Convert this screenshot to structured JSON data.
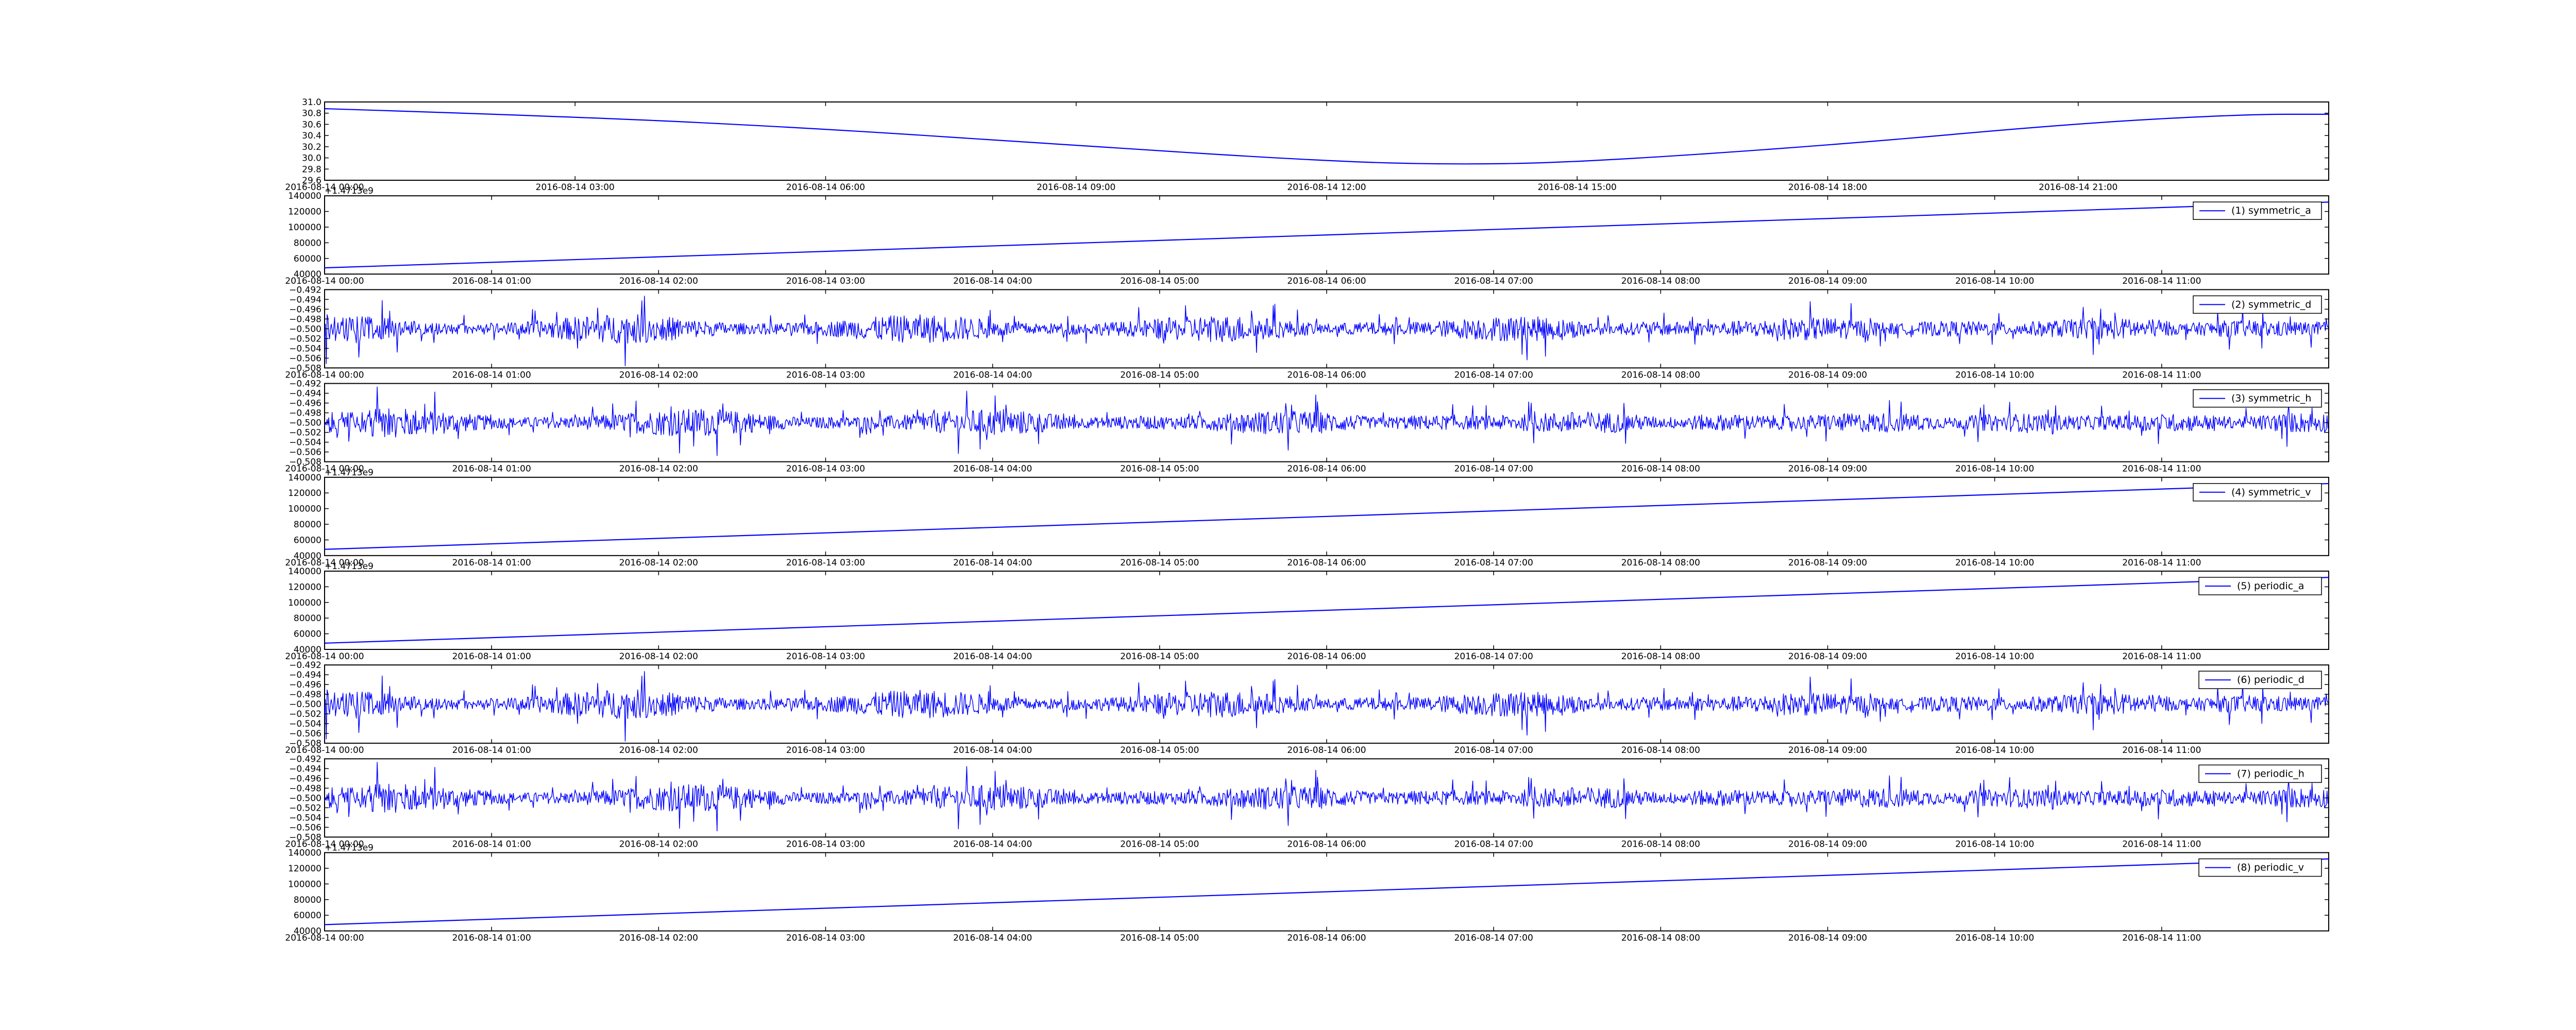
{
  "colors": {
    "series": "#0000ff",
    "frame": "#000000",
    "background": "#ffffff"
  },
  "chart_data": [
    {
      "type": "line",
      "title": "",
      "xlabel": "",
      "ylabel": "",
      "grid": false,
      "x_range": [
        "2016-08-14 00:00",
        "2016-08-15 00:00"
      ],
      "x_ticks": [
        "2016-08-14 00:00",
        "2016-08-14 03:00",
        "2016-08-14 06:00",
        "2016-08-14 09:00",
        "2016-08-14 12:00",
        "2016-08-14 15:00",
        "2016-08-14 18:00",
        "2016-08-14 21:00"
      ],
      "ylim": [
        29.6,
        31.0
      ],
      "y_ticks": [
        "29.6",
        "29.8",
        "30.0",
        "30.2",
        "30.4",
        "30.6",
        "30.8",
        "31.0"
      ],
      "offset_text": "",
      "legend": "",
      "legend_placement": "none",
      "series": [
        {
          "shape": "sine",
          "x": [
            "2016-08-14 00:00",
            "2016-08-14 03:00",
            "2016-08-14 06:00",
            "2016-08-14 09:00",
            "2016-08-14 12:00",
            "2016-08-14 13:30",
            "2016-08-14 15:00",
            "2016-08-14 18:00",
            "2016-08-14 21:00",
            "2016-08-14 23:00",
            "2016-08-15 00:00"
          ],
          "y": [
            30.88,
            30.74,
            30.52,
            30.22,
            29.94,
            29.88,
            29.92,
            30.22,
            30.62,
            30.78,
            30.78
          ]
        }
      ]
    },
    {
      "type": "line",
      "title": "",
      "xlabel": "",
      "ylabel": "",
      "grid": false,
      "x_range": [
        "2016-08-14 00:00",
        "2016-08-14 12:00"
      ],
      "x_ticks": [
        "2016-08-14 00:00",
        "2016-08-14 01:00",
        "2016-08-14 02:00",
        "2016-08-14 03:00",
        "2016-08-14 04:00",
        "2016-08-14 05:00",
        "2016-08-14 06:00",
        "2016-08-14 07:00",
        "2016-08-14 08:00",
        "2016-08-14 09:00",
        "2016-08-14 10:00",
        "2016-08-14 11:00"
      ],
      "ylim": [
        40000,
        140000
      ],
      "y_ticks": [
        "40000",
        "60000",
        "80000",
        "100000",
        "120000",
        "140000"
      ],
      "offset_text": "+1.4713e9",
      "legend": "(1) symmetric_a",
      "legend_placement": "upper right",
      "series": [
        {
          "shape": "linear",
          "start": 48000,
          "end": 132000
        }
      ]
    },
    {
      "type": "line",
      "title": "",
      "xlabel": "",
      "ylabel": "",
      "grid": false,
      "x_range": [
        "2016-08-14 00:00",
        "2016-08-14 12:00"
      ],
      "x_ticks": [
        "2016-08-14 00:00",
        "2016-08-14 01:00",
        "2016-08-14 02:00",
        "2016-08-14 03:00",
        "2016-08-14 04:00",
        "2016-08-14 05:00",
        "2016-08-14 06:00",
        "2016-08-14 07:00",
        "2016-08-14 08:00",
        "2016-08-14 09:00",
        "2016-08-14 10:00",
        "2016-08-14 11:00"
      ],
      "ylim": [
        -0.508,
        -0.492
      ],
      "y_ticks": [
        "−0.508",
        "−0.506",
        "−0.504",
        "−0.502",
        "−0.500",
        "−0.498",
        "−0.496",
        "−0.494",
        "−0.492"
      ],
      "offset_text": "",
      "legend": "(2) symmetric_d",
      "legend_placement": "upper right",
      "series": [
        {
          "shape": "noise",
          "center": -0.5,
          "spread": 0.0055,
          "seed": 11
        }
      ]
    },
    {
      "type": "line",
      "title": "",
      "xlabel": "",
      "ylabel": "",
      "grid": false,
      "x_range": [
        "2016-08-14 00:00",
        "2016-08-14 12:00"
      ],
      "x_ticks": [
        "2016-08-14 00:00",
        "2016-08-14 01:00",
        "2016-08-14 02:00",
        "2016-08-14 03:00",
        "2016-08-14 04:00",
        "2016-08-14 05:00",
        "2016-08-14 06:00",
        "2016-08-14 07:00",
        "2016-08-14 08:00",
        "2016-08-14 09:00",
        "2016-08-14 10:00",
        "2016-08-14 11:00"
      ],
      "ylim": [
        -0.508,
        -0.492
      ],
      "y_ticks": [
        "−0.508",
        "−0.506",
        "−0.504",
        "−0.502",
        "−0.500",
        "−0.498",
        "−0.496",
        "−0.494",
        "−0.492"
      ],
      "offset_text": "",
      "legend": "(3) symmetric_h",
      "legend_placement": "upper right",
      "series": [
        {
          "shape": "noise",
          "center": -0.5,
          "spread": 0.0055,
          "seed": 23
        }
      ]
    },
    {
      "type": "line",
      "title": "",
      "xlabel": "",
      "ylabel": "",
      "grid": false,
      "x_range": [
        "2016-08-14 00:00",
        "2016-08-14 12:00"
      ],
      "x_ticks": [
        "2016-08-14 00:00",
        "2016-08-14 01:00",
        "2016-08-14 02:00",
        "2016-08-14 03:00",
        "2016-08-14 04:00",
        "2016-08-14 05:00",
        "2016-08-14 06:00",
        "2016-08-14 07:00",
        "2016-08-14 08:00",
        "2016-08-14 09:00",
        "2016-08-14 10:00",
        "2016-08-14 11:00"
      ],
      "ylim": [
        40000,
        140000
      ],
      "y_ticks": [
        "40000",
        "60000",
        "80000",
        "100000",
        "120000",
        "140000"
      ],
      "offset_text": "+1.4713e9",
      "legend": "(4) symmetric_v",
      "legend_placement": "upper right",
      "series": [
        {
          "shape": "linear",
          "start": 48000,
          "end": 132000
        }
      ]
    },
    {
      "type": "line",
      "title": "",
      "xlabel": "",
      "ylabel": "",
      "grid": false,
      "x_range": [
        "2016-08-14 00:00",
        "2016-08-14 12:00"
      ],
      "x_ticks": [
        "2016-08-14 00:00",
        "2016-08-14 01:00",
        "2016-08-14 02:00",
        "2016-08-14 03:00",
        "2016-08-14 04:00",
        "2016-08-14 05:00",
        "2016-08-14 06:00",
        "2016-08-14 07:00",
        "2016-08-14 08:00",
        "2016-08-14 09:00",
        "2016-08-14 10:00",
        "2016-08-14 11:00"
      ],
      "ylim": [
        40000,
        140000
      ],
      "y_ticks": [
        "40000",
        "60000",
        "80000",
        "100000",
        "120000",
        "140000"
      ],
      "offset_text": "+1.4713e9",
      "legend": "(5) periodic_a",
      "legend_placement": "upper right",
      "series": [
        {
          "shape": "linear",
          "start": 48000,
          "end": 132000
        }
      ]
    },
    {
      "type": "line",
      "title": "",
      "xlabel": "",
      "ylabel": "",
      "grid": false,
      "x_range": [
        "2016-08-14 00:00",
        "2016-08-14 12:00"
      ],
      "x_ticks": [
        "2016-08-14 00:00",
        "2016-08-14 01:00",
        "2016-08-14 02:00",
        "2016-08-14 03:00",
        "2016-08-14 04:00",
        "2016-08-14 05:00",
        "2016-08-14 06:00",
        "2016-08-14 07:00",
        "2016-08-14 08:00",
        "2016-08-14 09:00",
        "2016-08-14 10:00",
        "2016-08-14 11:00"
      ],
      "ylim": [
        -0.508,
        -0.492
      ],
      "y_ticks": [
        "−0.508",
        "−0.506",
        "−0.504",
        "−0.502",
        "−0.500",
        "−0.498",
        "−0.496",
        "−0.494",
        "−0.492"
      ],
      "offset_text": "",
      "legend": "(6) periodic_d",
      "legend_placement": "upper right",
      "series": [
        {
          "shape": "noise",
          "center": -0.5,
          "spread": 0.0055,
          "seed": 11
        }
      ]
    },
    {
      "type": "line",
      "title": "",
      "xlabel": "",
      "ylabel": "",
      "grid": false,
      "x_range": [
        "2016-08-14 00:00",
        "2016-08-14 12:00"
      ],
      "x_ticks": [
        "2016-08-14 00:00",
        "2016-08-14 01:00",
        "2016-08-14 02:00",
        "2016-08-14 03:00",
        "2016-08-14 04:00",
        "2016-08-14 05:00",
        "2016-08-14 06:00",
        "2016-08-14 07:00",
        "2016-08-14 08:00",
        "2016-08-14 09:00",
        "2016-08-14 10:00",
        "2016-08-14 11:00"
      ],
      "ylim": [
        -0.508,
        -0.492
      ],
      "y_ticks": [
        "−0.508",
        "−0.506",
        "−0.504",
        "−0.502",
        "−0.500",
        "−0.498",
        "−0.496",
        "−0.494",
        "−0.492"
      ],
      "offset_text": "",
      "legend": "(7) periodic_h",
      "legend_placement": "upper right",
      "series": [
        {
          "shape": "noise",
          "center": -0.5,
          "spread": 0.0055,
          "seed": 23
        }
      ]
    },
    {
      "type": "line",
      "title": "",
      "xlabel": "",
      "ylabel": "",
      "grid": false,
      "x_range": [
        "2016-08-14 00:00",
        "2016-08-14 12:00"
      ],
      "x_ticks": [
        "2016-08-14 00:00",
        "2016-08-14 01:00",
        "2016-08-14 02:00",
        "2016-08-14 03:00",
        "2016-08-14 04:00",
        "2016-08-14 05:00",
        "2016-08-14 06:00",
        "2016-08-14 07:00",
        "2016-08-14 08:00",
        "2016-08-14 09:00",
        "2016-08-14 10:00",
        "2016-08-14 11:00"
      ],
      "ylim": [
        40000,
        140000
      ],
      "y_ticks": [
        "40000",
        "60000",
        "80000",
        "100000",
        "120000",
        "140000"
      ],
      "offset_text": "+1.4713e9",
      "legend": "(8) periodic_v",
      "legend_placement": "upper right",
      "series": [
        {
          "shape": "linear",
          "start": 48000,
          "end": 132000
        }
      ]
    }
  ]
}
